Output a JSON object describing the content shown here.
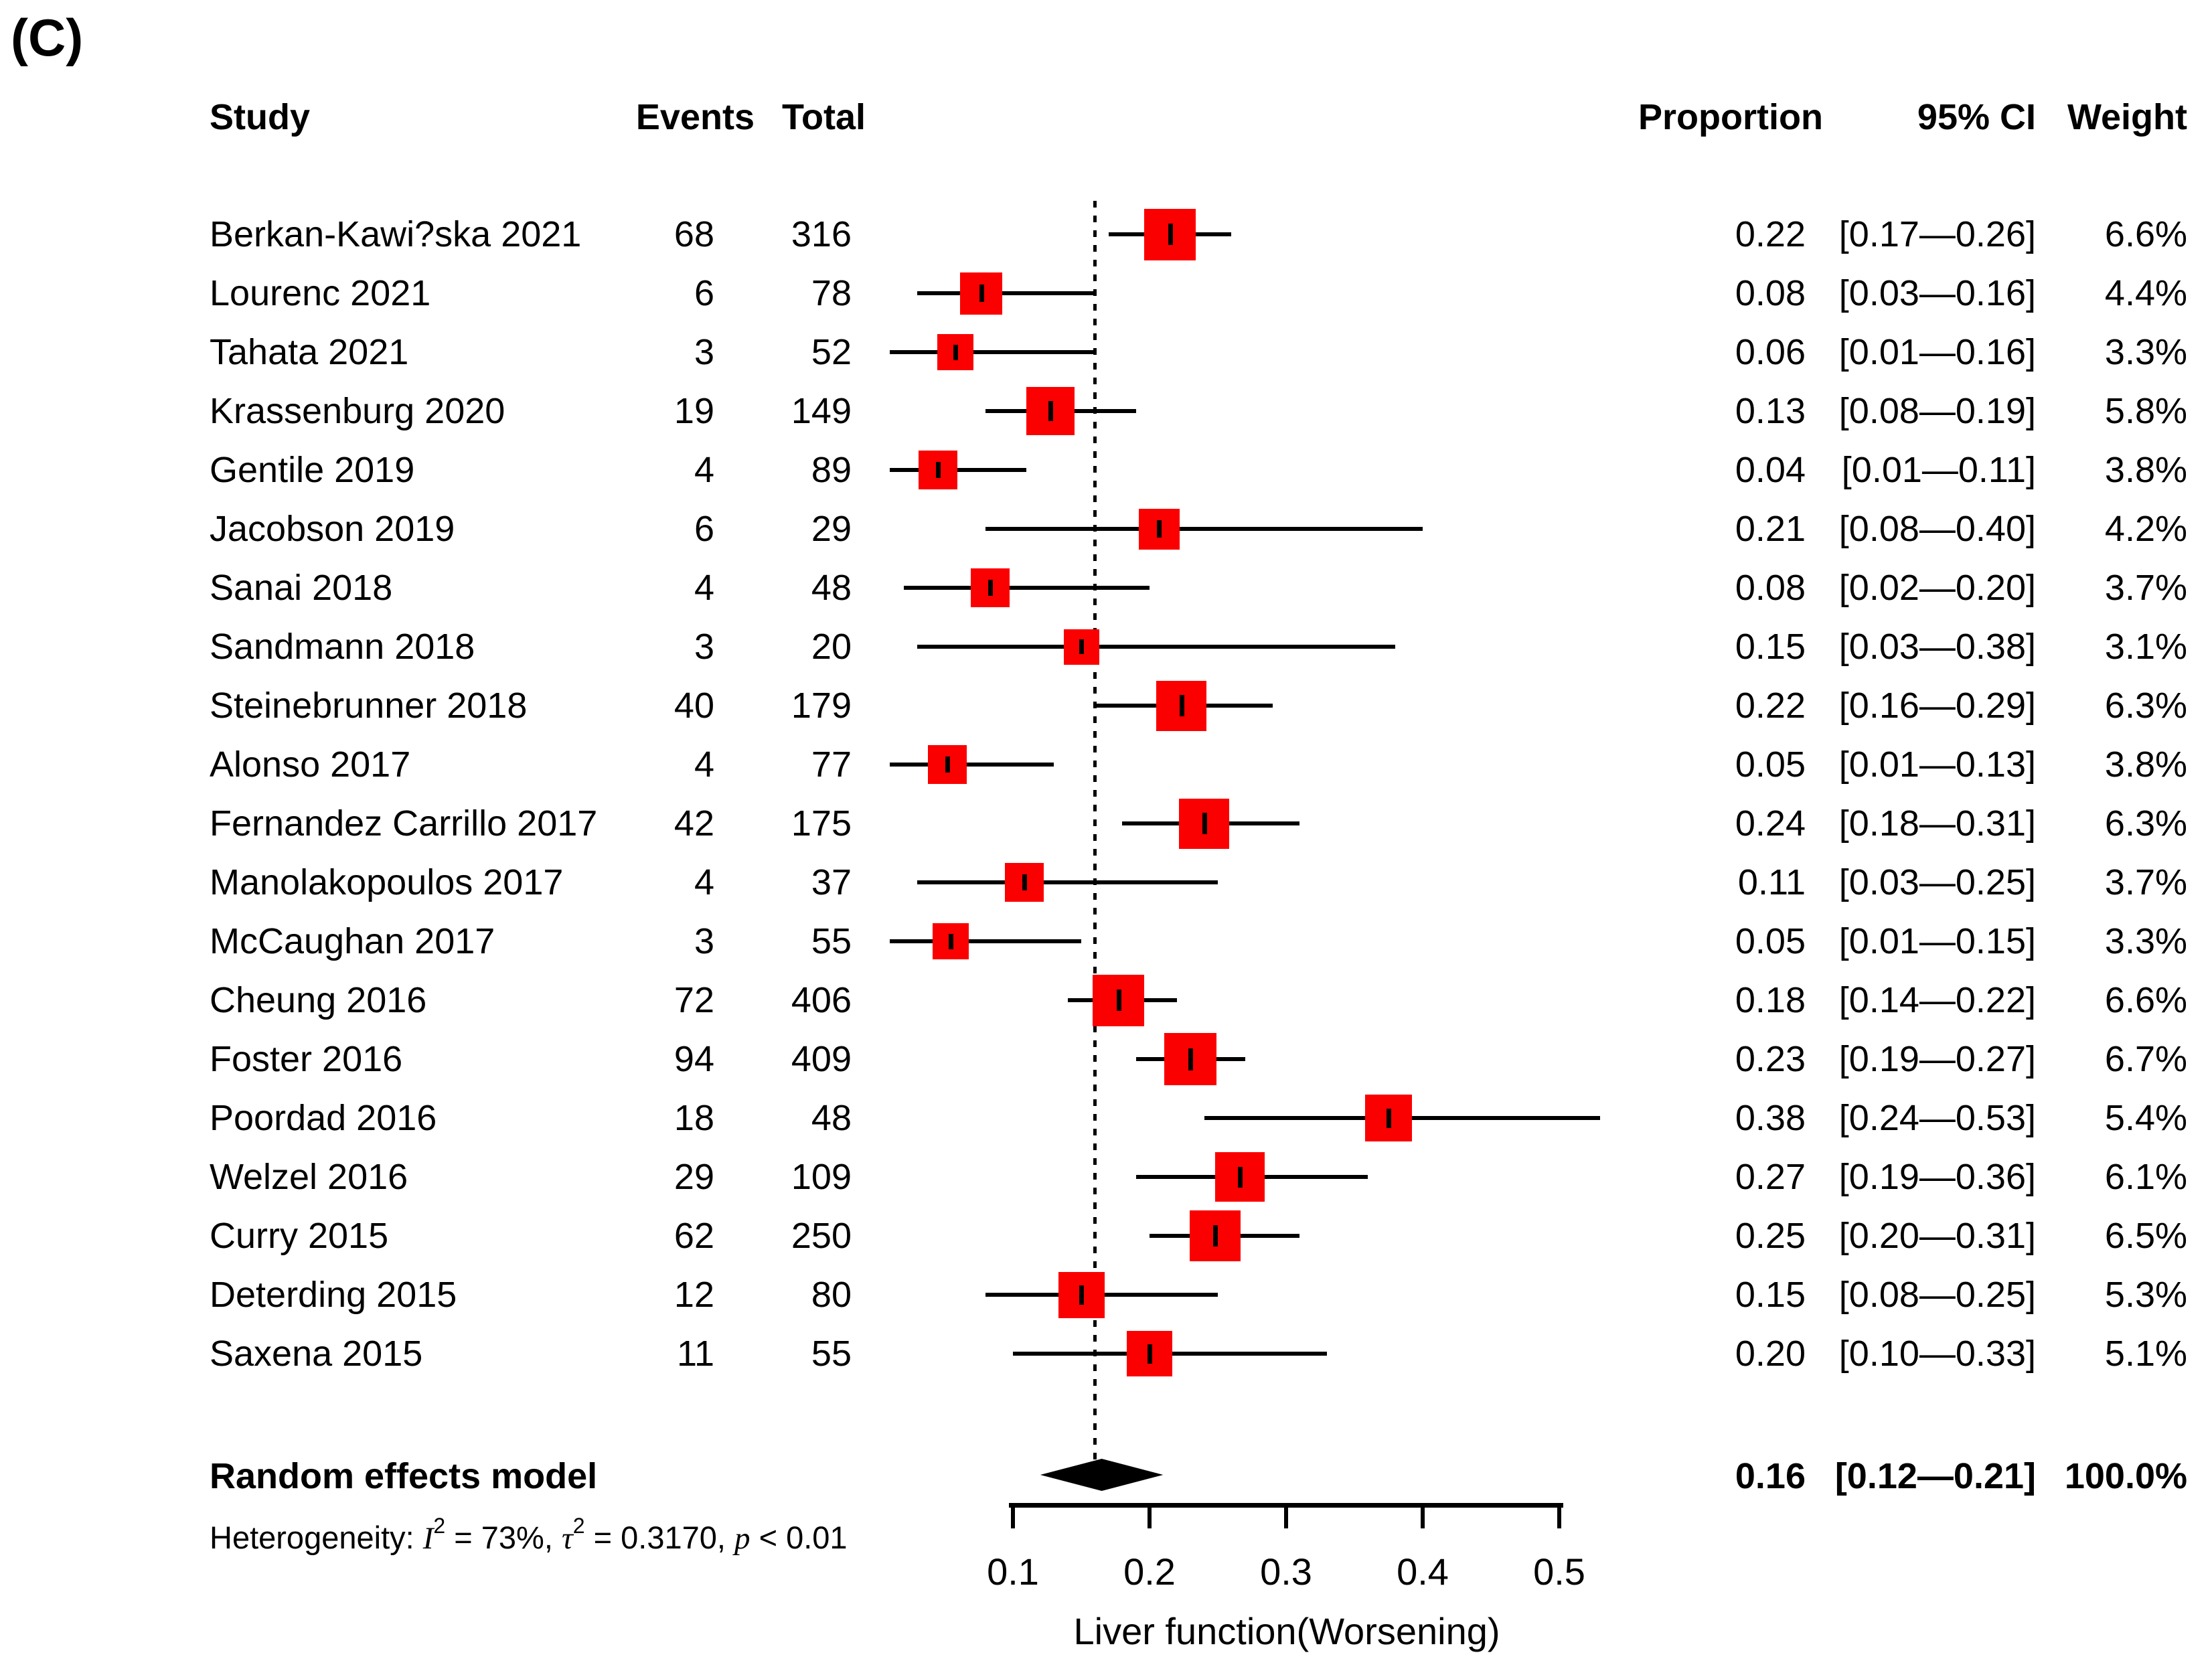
{
  "panel_label": "(C)",
  "table": {
    "headers": {
      "study": "Study",
      "events": "Events",
      "total": "Total",
      "proportion": "Proportion",
      "ci": "95% CI",
      "weight": "Weight"
    }
  },
  "chart_data": {
    "type": "forest",
    "x_axis": {
      "label": "Liver function(Worsening)",
      "ticks": [
        0.1,
        0.2,
        0.3,
        0.4,
        0.5
      ],
      "range": [
        0.1,
        0.5
      ]
    },
    "reference_line": 0.16,
    "marker_color": "#fb0000",
    "diamond_color": "#000000",
    "studies": [
      {
        "study": "Berkan-Kawi?ska 2021",
        "events": 68,
        "total": 316,
        "proportion": "0.22",
        "ci": "[0.17—0.26]",
        "weight": "6.6%",
        "lo": 0.17,
        "hi": 0.26,
        "weight_pct": 6.6
      },
      {
        "study": "Lourenc 2021",
        "events": 6,
        "total": 78,
        "proportion": "0.08",
        "ci": "[0.03—0.16]",
        "weight": "4.4%",
        "lo": 0.03,
        "hi": 0.16,
        "weight_pct": 4.4
      },
      {
        "study": "Tahata 2021",
        "events": 3,
        "total": 52,
        "proportion": "0.06",
        "ci": "[0.01—0.16]",
        "weight": "3.3%",
        "lo": 0.01,
        "hi": 0.16,
        "weight_pct": 3.3
      },
      {
        "study": "Krassenburg 2020",
        "events": 19,
        "total": 149,
        "proportion": "0.13",
        "ci": "[0.08—0.19]",
        "weight": "5.8%",
        "lo": 0.08,
        "hi": 0.19,
        "weight_pct": 5.8
      },
      {
        "study": "Gentile 2019",
        "events": 4,
        "total": 89,
        "proportion": "0.04",
        "ci": "[0.01—0.11]",
        "weight": "3.8%",
        "lo": 0.01,
        "hi": 0.11,
        "weight_pct": 3.8
      },
      {
        "study": "Jacobson 2019",
        "events": 6,
        "total": 29,
        "proportion": "0.21",
        "ci": "[0.08—0.40]",
        "weight": "4.2%",
        "lo": 0.08,
        "hi": 0.4,
        "weight_pct": 4.2
      },
      {
        "study": "Sanai 2018",
        "events": 4,
        "total": 48,
        "proportion": "0.08",
        "ci": "[0.02—0.20]",
        "weight": "3.7%",
        "lo": 0.02,
        "hi": 0.2,
        "weight_pct": 3.7
      },
      {
        "study": "Sandmann 2018",
        "events": 3,
        "total": 20,
        "proportion": "0.15",
        "ci": "[0.03—0.38]",
        "weight": "3.1%",
        "lo": 0.03,
        "hi": 0.38,
        "weight_pct": 3.1
      },
      {
        "study": "Steinebrunner 2018",
        "events": 40,
        "total": 179,
        "proportion": "0.22",
        "ci": "[0.16—0.29]",
        "weight": "6.3%",
        "lo": 0.16,
        "hi": 0.29,
        "weight_pct": 6.3
      },
      {
        "study": "Alonso 2017",
        "events": 4,
        "total": 77,
        "proportion": "0.05",
        "ci": "[0.01—0.13]",
        "weight": "3.8%",
        "lo": 0.01,
        "hi": 0.13,
        "weight_pct": 3.8
      },
      {
        "study": "Fernandez Carrillo 2017",
        "events": 42,
        "total": 175,
        "proportion": "0.24",
        "ci": "[0.18—0.31]",
        "weight": "6.3%",
        "lo": 0.18,
        "hi": 0.31,
        "weight_pct": 6.3
      },
      {
        "study": "Manolakopoulos 2017",
        "events": 4,
        "total": 37,
        "proportion": "0.11",
        "ci": "[0.03—0.25]",
        "weight": "3.7%",
        "lo": 0.03,
        "hi": 0.25,
        "weight_pct": 3.7
      },
      {
        "study": "McCaughan 2017",
        "events": 3,
        "total": 55,
        "proportion": "0.05",
        "ci": "[0.01—0.15]",
        "weight": "3.3%",
        "lo": 0.01,
        "hi": 0.15,
        "weight_pct": 3.3
      },
      {
        "study": "Cheung 2016",
        "events": 72,
        "total": 406,
        "proportion": "0.18",
        "ci": "[0.14—0.22]",
        "weight": "6.6%",
        "lo": 0.14,
        "hi": 0.22,
        "weight_pct": 6.6
      },
      {
        "study": "Foster 2016",
        "events": 94,
        "total": 409,
        "proportion": "0.23",
        "ci": "[0.19—0.27]",
        "weight": "6.7%",
        "lo": 0.19,
        "hi": 0.27,
        "weight_pct": 6.7
      },
      {
        "study": "Poordad 2016",
        "events": 18,
        "total": 48,
        "proportion": "0.38",
        "ci": "[0.24—0.53]",
        "weight": "5.4%",
        "lo": 0.24,
        "hi": 0.53,
        "weight_pct": 5.4
      },
      {
        "study": "Welzel 2016",
        "events": 29,
        "total": 109,
        "proportion": "0.27",
        "ci": "[0.19—0.36]",
        "weight": "6.1%",
        "lo": 0.19,
        "hi": 0.36,
        "weight_pct": 6.1
      },
      {
        "study": "Curry 2015",
        "events": 62,
        "total": 250,
        "proportion": "0.25",
        "ci": "[0.20—0.31]",
        "weight": "6.5%",
        "lo": 0.2,
        "hi": 0.31,
        "weight_pct": 6.5
      },
      {
        "study": "Deterding 2015",
        "events": 12,
        "total": 80,
        "proportion": "0.15",
        "ci": "[0.08—0.25]",
        "weight": "5.3%",
        "lo": 0.08,
        "hi": 0.25,
        "weight_pct": 5.3
      },
      {
        "study": "Saxena 2015",
        "events": 11,
        "total": 55,
        "proportion": "0.20",
        "ci": "[0.10—0.33]",
        "weight": "5.1%",
        "lo": 0.1,
        "hi": 0.33,
        "weight_pct": 5.1
      }
    ],
    "summary": {
      "study": "Random effects model",
      "proportion": "0.16",
      "ci": "[0.12—0.21]",
      "weight": "100.0%",
      "est": 0.16,
      "lo": 0.12,
      "hi": 0.21
    },
    "heterogeneity_parts": [
      {
        "t": "Heterogeneity: "
      },
      {
        "t": "I",
        "math": true
      },
      {
        "t": "2",
        "sup": true
      },
      {
        "t": " = 73%, "
      },
      {
        "t": "τ",
        "math": true
      },
      {
        "t": "2",
        "sup": true
      },
      {
        "t": " = 0.3170, "
      },
      {
        "t": "p",
        "math": true
      },
      {
        "t": " < 0.01"
      }
    ]
  }
}
